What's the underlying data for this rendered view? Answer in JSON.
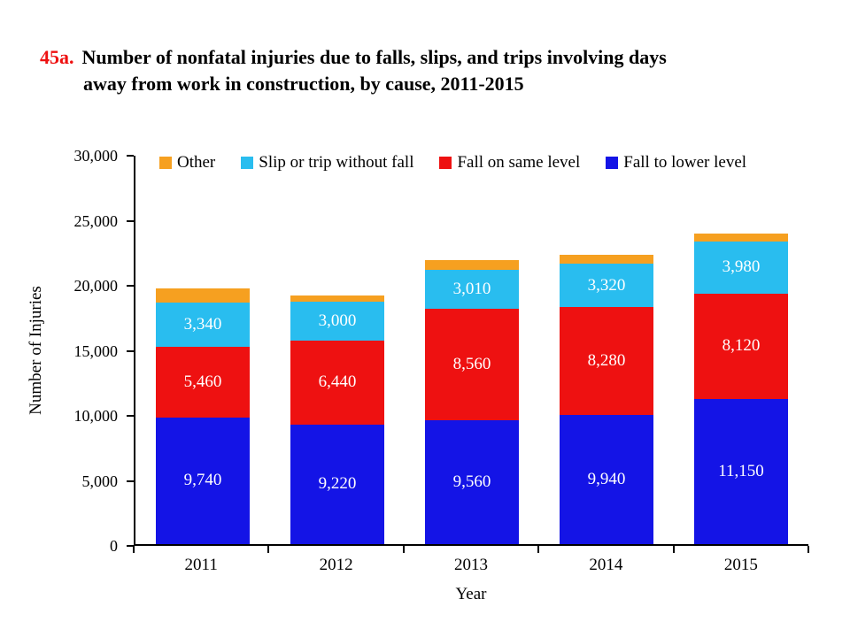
{
  "title": {
    "number": "45a.",
    "lines": [
      "Number of nonfatal injuries due to falls, slips, and trips involving days",
      "away from work in construction, by cause, 2011-2015"
    ]
  },
  "colors": {
    "title_number": "#ee1111",
    "axis": "#000000",
    "background": "#ffffff",
    "bar_label_text": "#ffffff"
  },
  "chart_data": {
    "type": "bar",
    "stacked": true,
    "title": "45a. Number of nonfatal injuries due to falls, slips, and trips involving days away from work in construction, by cause, 2011-2015",
    "xlabel": "Year",
    "ylabel": "Number of Injuries",
    "ylim": [
      0,
      30000
    ],
    "grid": false,
    "legend_position": "top-inside",
    "yticks": [
      {
        "value": 0,
        "label": "0"
      },
      {
        "value": 5000,
        "label": "5,000"
      },
      {
        "value": 10000,
        "label": "10,000"
      },
      {
        "value": 15000,
        "label": "15,000"
      },
      {
        "value": 20000,
        "label": "20,000"
      },
      {
        "value": 25000,
        "label": "25,000"
      },
      {
        "value": 30000,
        "label": "30,000"
      }
    ],
    "categories": [
      "2011",
      "2012",
      "2013",
      "2014",
      "2015"
    ],
    "series": [
      {
        "name": "Fall to lower level",
        "color": "#1414e6",
        "values": [
          9740,
          9220,
          9560,
          9940,
          11150
        ],
        "labels": [
          "9,740",
          "9,220",
          "9,560",
          "9,940",
          "11,150"
        ]
      },
      {
        "name": "Fall on same level",
        "color": "#ee1111",
        "values": [
          5460,
          6440,
          8560,
          8280,
          8120
        ],
        "labels": [
          "5,460",
          "6,440",
          "8,560",
          "8,280",
          "8,120"
        ]
      },
      {
        "name": "Slip or trip without fall",
        "color": "#29bdef",
        "values": [
          3340,
          3000,
          3010,
          3320,
          3980
        ],
        "labels": [
          "3,340",
          "3,000",
          "3,010",
          "3,320",
          "3,980"
        ]
      },
      {
        "name": "Other",
        "color": "#f6a020",
        "values": [
          1150,
          450,
          740,
          740,
          600
        ],
        "labels": [
          "",
          "",
          "",
          "",
          ""
        ],
        "unlabeled_estimate": true
      }
    ],
    "legend": [
      {
        "label": "Other",
        "color": "#f6a020"
      },
      {
        "label": "Slip or trip without fall",
        "color": "#29bdef"
      },
      {
        "label": "Fall on same level",
        "color": "#ee1111"
      },
      {
        "label": "Fall to lower level",
        "color": "#1414e6"
      }
    ]
  }
}
